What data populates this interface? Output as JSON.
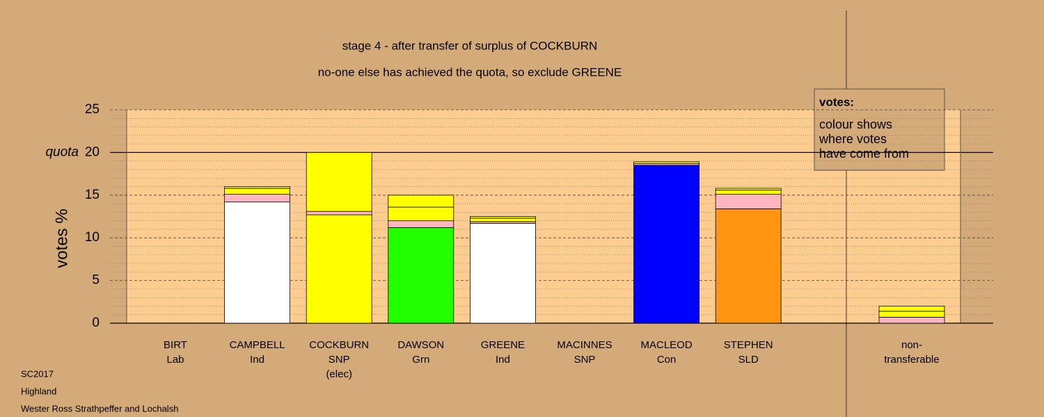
{
  "chart_data": {
    "type": "stacked-bar",
    "title": "stage 4 - after transfer of surplus of COCKBURN",
    "subtitle": "no-one else has achieved the quota, so exclude GREENE",
    "y_label": "votes %",
    "ylim": [
      0,
      25
    ],
    "yticks": [
      0,
      5,
      10,
      15,
      20,
      25
    ],
    "minor_yticks": [
      1,
      2,
      3,
      4,
      6,
      7,
      8,
      9,
      11,
      12,
      13,
      14,
      16,
      17,
      18,
      19,
      21,
      22,
      23,
      24
    ],
    "quota": 20,
    "quota_label": "quota",
    "categories": [
      [
        "BIRT",
        "Lab"
      ],
      [
        "CAMPBELL",
        "Ind"
      ],
      [
        "COCKBURN",
        "SNP",
        "(elec)"
      ],
      [
        "DAWSON",
        "Grn"
      ],
      [
        "GREENE",
        "Ind"
      ],
      [
        "MACINNES",
        "SNP"
      ],
      [
        "MACLEOD",
        "Con"
      ],
      [
        "STEPHEN",
        "SLD"
      ]
    ],
    "stacks": [
      [
        {
          "color": "#ffffff",
          "value": 0
        }
      ],
      [
        {
          "color": "#ffffff",
          "value": 14.2
        },
        {
          "color": "#ffb6c1",
          "value": 0.9
        },
        {
          "color": "#ffff00",
          "value": 0.7
        },
        {
          "color": "#ffff00",
          "value": 0.2
        }
      ],
      [
        {
          "color": "#ffff00",
          "value": 12.7
        },
        {
          "color": "#ffb6c1",
          "value": 0.4
        },
        {
          "color": "#ffff00",
          "value": 6.9
        }
      ],
      [
        {
          "color": "#22ff00",
          "value": 11.2
        },
        {
          "color": "#ffb6c1",
          "value": 0.8
        },
        {
          "color": "#ffff00",
          "value": 1.6
        },
        {
          "color": "#ffff00",
          "value": 1.4
        }
      ],
      [
        {
          "color": "#ffffff",
          "value": 11.7
        },
        {
          "color": "#ffb6c1",
          "value": 0.2
        },
        {
          "color": "#ffff00",
          "value": 0.4
        },
        {
          "color": "#ffff00",
          "value": 0.2
        }
      ],
      [
        {
          "color": "#ffff00",
          "value": 0
        }
      ],
      [
        {
          "color": "#0000ff",
          "value": 18.5
        },
        {
          "color": "#ffb6c1",
          "value": 0.2
        },
        {
          "color": "#ffff00",
          "value": 0.2
        }
      ],
      [
        {
          "color": "#ff9410",
          "value": 13.4
        },
        {
          "color": "#ffb6c1",
          "value": 1.7
        },
        {
          "color": "#ffff00",
          "value": 0.5
        },
        {
          "color": "#ffff00",
          "value": 0.2
        }
      ]
    ],
    "nontransferable_label": [
      "non-",
      "transferable"
    ],
    "nontransferable": [
      {
        "color": "#ffb6c1",
        "value": 0.7
      },
      {
        "color": "#ffff00",
        "value": 0.7
      },
      {
        "color": "#ffff00",
        "value": 0.6
      }
    ],
    "legend": {
      "title": "votes:",
      "lines": [
        "colour shows",
        "where votes",
        "have come from"
      ]
    },
    "footer": [
      "SC2017",
      "Highland",
      "Wester Ross Strathpeffer and Lochalsh"
    ]
  }
}
